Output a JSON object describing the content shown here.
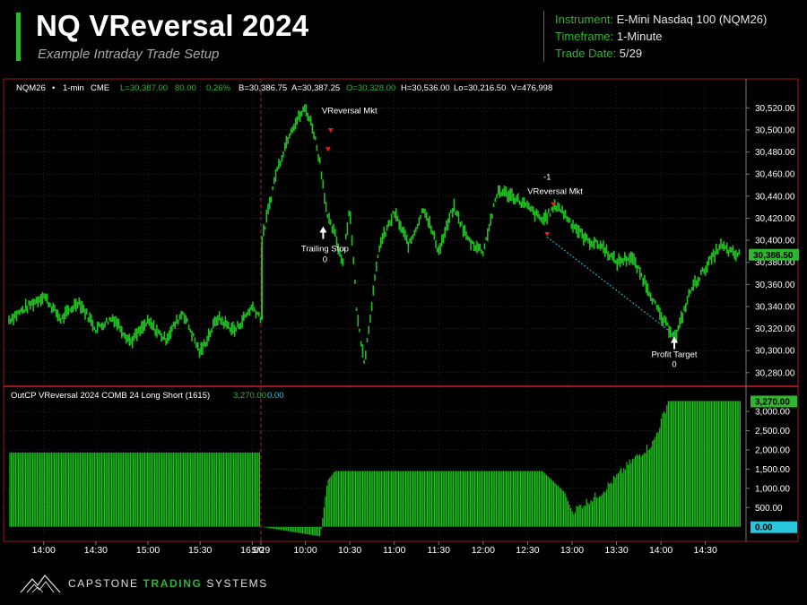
{
  "header": {
    "title": "NQ VReversal 2024",
    "subtitle": "Example Intraday Trade Setup",
    "instrument_label": "Instrument:",
    "instrument_value": "E-Mini Nasdaq 100 (NQM26)",
    "timeframe_label": "Timeframe:",
    "timeframe_value": "1-Minute",
    "date_label": "Trade Date:",
    "date_value": "5/29"
  },
  "price_panel": {
    "symbol": "NQM26",
    "dot": "•",
    "interval": "1-min",
    "exchange": "CME",
    "last": "L=30,387.00",
    "change": "80.00",
    "change_pct": "0.26%",
    "bid": "B=30,386.75",
    "ask": "A=30,387.25",
    "open": "O=30,328.00",
    "high": "H=30,536.00",
    "low": "Lo=30,216.50",
    "volume": "V=476,998",
    "last_price_tag": "30,386.50"
  },
  "indicator_panel": {
    "name": "OutCP VReversal 2024 COMB 24 Long Short (1615)",
    "value1": "3,270.00",
    "value2": "0.00",
    "tag_top": "3,270.00",
    "tag_bottom": "0.00"
  },
  "annotations": {
    "entry1": "VReversal Mkt",
    "exit1_name": "Trailing Stop",
    "exit1_qty": "0",
    "entry2_qty": "-1",
    "entry2": "VReversal Mkt",
    "exit2_name": "Profit Target",
    "exit2_qty": "0"
  },
  "colors": {
    "accent": "#2fb52f",
    "bar": "#1fbf1f",
    "cyan": "#29c6de",
    "grid": "#3a3a3a",
    "session_line": "#c02020",
    "frame": "#9a1a1a"
  },
  "chart_data": [
    {
      "type": "line",
      "name": "NQM26 1-min price",
      "x": [
        "13:40",
        "14:00",
        "14:10",
        "14:20",
        "14:30",
        "14:40",
        "14:50",
        "15:00",
        "15:10",
        "15:20",
        "15:30",
        "15:40",
        "15:50",
        "16:00",
        "16:05",
        "5/29 09:30",
        "09:40",
        "09:50",
        "10:00",
        "10:05",
        "10:10",
        "10:15",
        "10:20",
        "10:25",
        "10:30",
        "10:35",
        "10:40",
        "10:45",
        "10:50",
        "11:00",
        "11:10",
        "11:20",
        "11:30",
        "11:40",
        "11:50",
        "12:00",
        "12:10",
        "12:20",
        "12:30",
        "12:40",
        "12:50",
        "13:00",
        "13:10",
        "13:20",
        "13:30",
        "13:40",
        "13:50",
        "14:00",
        "14:10",
        "14:20",
        "14:30",
        "14:40",
        "14:50"
      ],
      "y": [
        30328,
        30350,
        30328,
        30345,
        30320,
        30330,
        30308,
        30326,
        30310,
        30335,
        30298,
        30330,
        30318,
        30340,
        30330,
        30395,
        30460,
        30500,
        30520,
        30502,
        30470,
        30420,
        30405,
        30380,
        30430,
        30330,
        30290,
        30345,
        30395,
        30425,
        30395,
        30430,
        30390,
        30430,
        30400,
        30390,
        30445,
        30440,
        30430,
        30418,
        30432,
        30415,
        30400,
        30395,
        30380,
        30385,
        30360,
        30330,
        30312,
        30355,
        30375,
        30395,
        30387
      ],
      "xlabel": "",
      "ylabel": "",
      "x_ticks": [
        "14:00",
        "14:30",
        "15:00",
        "15:30",
        "16:00",
        "5/29",
        "10:00",
        "10:30",
        "11:00",
        "11:30",
        "12:00",
        "12:30",
        "13:00",
        "13:30",
        "14:00",
        "14:30"
      ],
      "y_ticks": [
        "30,520.00",
        "30,500.00",
        "30,480.00",
        "30,460.00",
        "30,440.00",
        "30,420.00",
        "30,400.00",
        "30,380.00",
        "30,360.00",
        "30,340.00",
        "30,320.00",
        "30,300.00",
        "30,280.00"
      ],
      "ylim": [
        30275,
        30530
      ],
      "grid": true
    },
    {
      "type": "bar",
      "name": "OutCP VReversal 2024 COMB 24 Long Short (1615)",
      "x": [
        "13:40",
        "16:05",
        "5/29 09:30",
        "10:10",
        "10:15",
        "10:20",
        "11:00",
        "12:00",
        "12:40",
        "12:55",
        "13:00",
        "13:20",
        "13:40",
        "13:55",
        "14:05",
        "14:55"
      ],
      "y": [
        1930,
        1930,
        0,
        -250,
        1200,
        1450,
        1450,
        1450,
        1450,
        900,
        400,
        900,
        1700,
        2200,
        3270,
        3270
      ],
      "y_ticks": [
        "3,000.00",
        "2,500.00",
        "2,000.00",
        "1,500.00",
        "1,000.00",
        "500.00"
      ],
      "ylim": [
        -100,
        3350
      ],
      "grid": true
    }
  ],
  "footer": {
    "brand1": "CAPSTONE ",
    "brand2": "TRADING",
    "brand3": " SYSTEMS"
  }
}
